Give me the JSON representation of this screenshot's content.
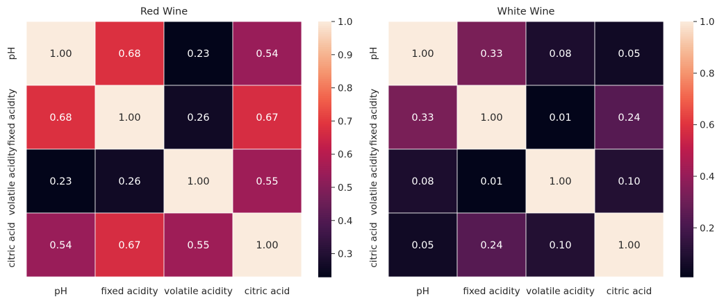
{
  "chart_data": [
    {
      "type": "heatmap",
      "title": "Red Wine",
      "xlabel": "",
      "ylabel": "",
      "categories": [
        "pH",
        "fixed acidity",
        "volatile acidity",
        "citric acid"
      ],
      "values": [
        [
          1.0,
          0.68,
          0.23,
          0.54
        ],
        [
          0.68,
          1.0,
          0.26,
          0.67
        ],
        [
          0.23,
          0.26,
          1.0,
          0.55
        ],
        [
          0.54,
          0.67,
          0.55,
          1.0
        ]
      ],
      "labels": [
        [
          "1.00",
          "0.68",
          "0.23",
          "0.54"
        ],
        [
          "0.68",
          "1.00",
          "0.26",
          "0.67"
        ],
        [
          "0.23",
          "0.26",
          "1.00",
          "0.55"
        ],
        [
          "0.54",
          "0.67",
          "0.55",
          "1.00"
        ]
      ],
      "colorbar": {
        "vmin": 0.23,
        "vmax": 1.0,
        "ticks": [
          0.3,
          0.4,
          0.5,
          0.6,
          0.7,
          0.8,
          0.9,
          1.0
        ],
        "tick_labels": [
          "0.3",
          "0.4",
          "0.5",
          "0.6",
          "0.7",
          "0.8",
          "0.9",
          "1.0"
        ]
      },
      "colormap": "rocket"
    },
    {
      "type": "heatmap",
      "title": "White Wine",
      "xlabel": "",
      "ylabel": "",
      "categories": [
        "pH",
        "fixed acidity",
        "volatile acidity",
        "citric acid"
      ],
      "values": [
        [
          1.0,
          0.33,
          0.08,
          0.05
        ],
        [
          0.33,
          1.0,
          0.01,
          0.24
        ],
        [
          0.08,
          0.01,
          1.0,
          0.1
        ],
        [
          0.05,
          0.24,
          0.1,
          1.0
        ]
      ],
      "labels": [
        [
          "1.00",
          "0.33",
          "0.08",
          "0.05"
        ],
        [
          "0.33",
          "1.00",
          "0.01",
          "0.24"
        ],
        [
          "0.08",
          "0.01",
          "1.00",
          "0.10"
        ],
        [
          "0.05",
          "0.24",
          "0.10",
          "1.00"
        ]
      ],
      "colorbar": {
        "vmin": 0.01,
        "vmax": 1.0,
        "ticks": [
          0.2,
          0.4,
          0.6,
          0.8,
          1.0
        ],
        "tick_labels": [
          "0.2",
          "0.4",
          "0.6",
          "0.8",
          "1.0"
        ]
      },
      "colormap": "rocket"
    }
  ],
  "colors": {
    "cell_border": "#ffffff",
    "text_dark": "#262626",
    "text_light": "#ffffff"
  }
}
